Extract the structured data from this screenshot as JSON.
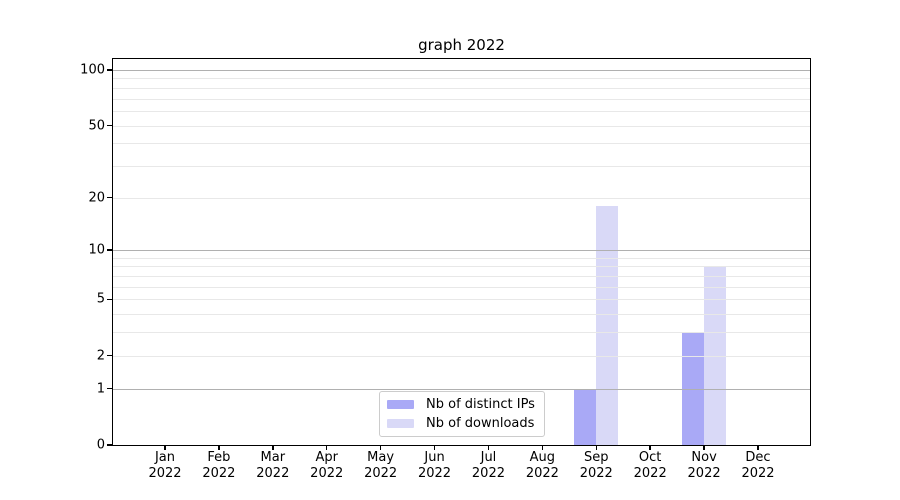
{
  "figure": {
    "background": "#ffffff"
  },
  "chart_data": {
    "type": "bar",
    "title": "graph 2022",
    "categories": [
      "Jan 2022",
      "Feb 2022",
      "Mar 2022",
      "Apr 2022",
      "May 2022",
      "Jun 2022",
      "Jul 2022",
      "Aug 2022",
      "Sep 2022",
      "Oct 2022",
      "Nov 2022",
      "Dec 2022"
    ],
    "series": [
      {
        "name": "Nb of distinct IPs",
        "color": "#a9a9f6",
        "values": [
          0,
          0,
          0,
          0,
          0,
          0,
          0,
          0,
          1,
          0,
          3,
          0
        ]
      },
      {
        "name": "Nb of downloads",
        "color": "#d9d9f7",
        "values": [
          0,
          0,
          0,
          0,
          0,
          0,
          0,
          0,
          18,
          0,
          8,
          0
        ]
      }
    ],
    "xlabel": "",
    "ylabel": "",
    "yscale": "log1p",
    "ylim": [
      0,
      115
    ],
    "yticks": {
      "values": [
        0,
        1,
        2,
        5,
        10,
        20,
        50,
        100
      ],
      "labels": [
        "0",
        "1",
        "2",
        "5",
        "10",
        "20",
        "50",
        "100"
      ]
    },
    "grid": {
      "on": true,
      "major_values": [
        1,
        10,
        100
      ],
      "minor_values": [
        2,
        3,
        4,
        5,
        6,
        7,
        8,
        9,
        20,
        30,
        40,
        50,
        60,
        70,
        80,
        90
      ],
      "major_color": "#b0b0b0",
      "minor_color": "#e8e8e8"
    },
    "legend": {
      "position": "lower-center",
      "entries": [
        "Nb of distinct IPs",
        "Nb of downloads"
      ]
    },
    "axis_color": "#000000",
    "text_color": "#000000"
  }
}
